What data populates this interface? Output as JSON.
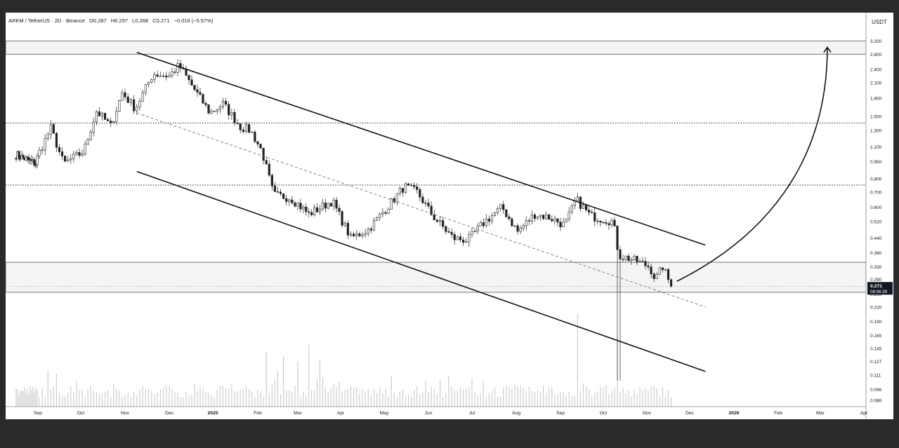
{
  "header": {
    "symbol": "ARKM / TetherUS · 2D · Binance",
    "open": "O0.287",
    "high": "H0.297",
    "low": "L0.268",
    "close": "C0.271",
    "change": "−0.016 (−5.57%)"
  },
  "price_axis": {
    "currency": "USDT",
    "last_price": "0.271",
    "countdown": "08:56:39"
  },
  "chart_data": {
    "type": "candlestick",
    "title": "",
    "y_scale": "log",
    "ylim": [
      0.083,
      4.05
    ],
    "y_ticks": [
      "3.200",
      "2.800",
      "2.400",
      "2.100",
      "1.800",
      "1.500",
      "1.300",
      "1.100",
      "0.950",
      "0.800",
      "0.700",
      "0.600",
      "0.520",
      "0.440",
      "0.380",
      "0.330",
      "0.290",
      "0.250",
      "0.220",
      "0.190",
      "0.165",
      "0.145",
      "0.127",
      "0.111",
      "0.096",
      "0.086"
    ],
    "x_ticks": [
      "Sep",
      "Oct",
      "Nov",
      "Dec",
      "2025",
      "Feb",
      "Mar",
      "Apr",
      "May",
      "Jun",
      "Jul",
      "Aug",
      "Sep",
      "Oct",
      "Nov",
      "Dec",
      "2026",
      "Feb",
      "Mar",
      "Apr"
    ],
    "current_price": 0.271,
    "horizontal_levels": [
      3.2,
      2.8,
      1.4,
      0.75
    ],
    "support_zone": [
      0.255,
      0.345
    ],
    "channel_lines": [
      {
        "name": "upper",
        "style": "solid",
        "from": {
          "date": "2024-11-09",
          "price": 2.85
        },
        "to": {
          "date": "2025-12-12",
          "price": 0.41
        }
      },
      {
        "name": "middle",
        "style": "dashed",
        "from": {
          "date": "2024-11-09",
          "price": 1.55
        },
        "to": {
          "date": "2025-12-12",
          "price": 0.22
        }
      },
      {
        "name": "lower",
        "style": "solid",
        "from": {
          "date": "2024-11-09",
          "price": 0.86
        },
        "to": {
          "date": "2025-12-12",
          "price": 0.115
        }
      }
    ],
    "projection_arrow": {
      "from": {
        "date": "2025-11-22",
        "price": 0.285
      },
      "to": {
        "date": "2026-03-06",
        "price": 3.0
      }
    },
    "candle_waypoints": [
      {
        "date": "2024-08-01",
        "close": 1.02
      },
      {
        "date": "2024-08-16",
        "close": 0.97
      },
      {
        "date": "2024-08-29",
        "close": 0.93
      },
      {
        "date": "2024-09-10",
        "close": 1.33
      },
      {
        "date": "2024-09-19",
        "close": 0.93
      },
      {
        "date": "2024-10-03",
        "close": 1.05
      },
      {
        "date": "2024-10-12",
        "close": 1.58
      },
      {
        "date": "2024-10-22",
        "close": 1.36
      },
      {
        "date": "2024-10-30",
        "close": 1.9
      },
      {
        "date": "2024-11-08",
        "close": 1.62
      },
      {
        "date": "2024-11-20",
        "close": 2.3
      },
      {
        "date": "2024-12-01",
        "close": 2.25
      },
      {
        "date": "2024-12-08",
        "close": 2.5
      },
      {
        "date": "2024-12-18",
        "close": 2.0
      },
      {
        "date": "2024-12-30",
        "close": 1.55
      },
      {
        "date": "2025-01-08",
        "close": 1.7
      },
      {
        "date": "2025-01-20",
        "close": 1.35
      },
      {
        "date": "2025-01-27",
        "close": 1.3
      },
      {
        "date": "2025-02-04",
        "close": 1.05
      },
      {
        "date": "2025-02-12",
        "close": 0.68
      },
      {
        "date": "2025-02-24",
        "close": 0.66
      },
      {
        "date": "2025-03-09",
        "close": 0.56
      },
      {
        "date": "2025-03-26",
        "close": 0.64
      },
      {
        "date": "2025-04-08",
        "close": 0.44
      },
      {
        "date": "2025-04-20",
        "close": 0.48
      },
      {
        "date": "2025-05-05",
        "close": 0.62
      },
      {
        "date": "2025-05-15",
        "close": 0.74
      },
      {
        "date": "2025-05-24",
        "close": 0.7
      },
      {
        "date": "2025-06-04",
        "close": 0.55
      },
      {
        "date": "2025-06-18",
        "close": 0.44
      },
      {
        "date": "2025-06-28",
        "close": 0.43
      },
      {
        "date": "2025-07-10",
        "close": 0.52
      },
      {
        "date": "2025-07-22",
        "close": 0.6
      },
      {
        "date": "2025-08-02",
        "close": 0.47
      },
      {
        "date": "2025-08-14",
        "close": 0.56
      },
      {
        "date": "2025-08-25",
        "close": 0.54
      },
      {
        "date": "2025-09-04",
        "close": 0.5
      },
      {
        "date": "2025-09-12",
        "close": 0.65
      },
      {
        "date": "2025-09-22",
        "close": 0.55
      },
      {
        "date": "2025-10-08",
        "close": 0.52
      },
      {
        "date": "2025-10-12",
        "close": 0.37
      },
      {
        "date": "2025-10-24",
        "close": 0.35
      },
      {
        "date": "2025-11-03",
        "close": 0.33
      },
      {
        "date": "2025-11-07",
        "close": 0.29
      },
      {
        "date": "2025-11-12",
        "close": 0.33
      },
      {
        "date": "2025-11-18",
        "close": 0.271
      }
    ],
    "wick_extremes": [
      {
        "date": "2025-10-10",
        "low": 0.105
      }
    ],
    "volume_spikes": [
      {
        "date": "2025-09-13",
        "level": 1.0
      },
      {
        "date": "2025-10-10",
        "level": 0.75
      },
      {
        "date": "2025-03-09",
        "level": 0.67
      },
      {
        "date": "2025-02-07",
        "level": 0.6
      },
      {
        "date": "2025-02-19",
        "level": 0.55
      },
      {
        "date": "2025-03-01",
        "level": 0.48
      },
      {
        "date": "2025-03-16",
        "level": 0.5
      }
    ]
  }
}
